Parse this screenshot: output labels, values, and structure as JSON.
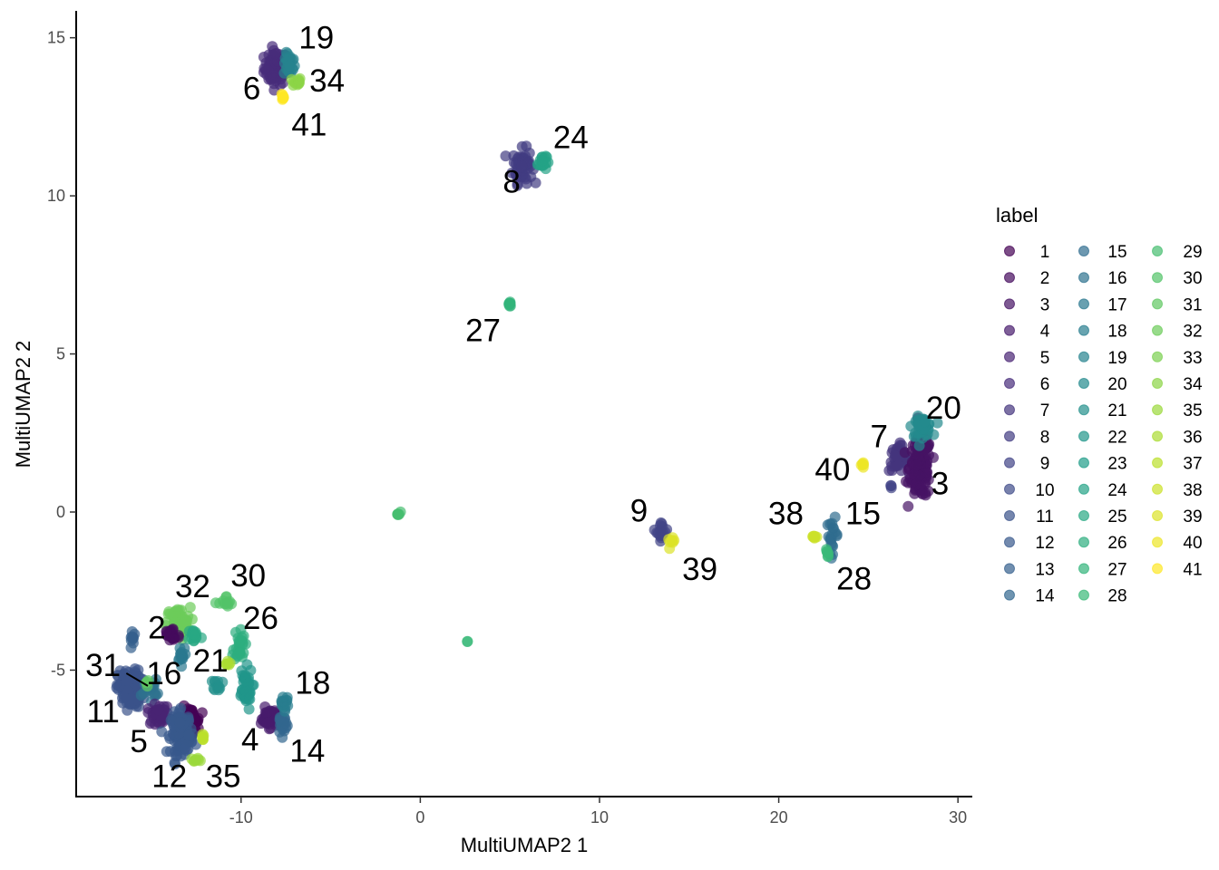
{
  "chart_data": {
    "type": "scatter",
    "xlabel": "MultiUMAP2 1",
    "ylabel": "MultiUMAP2 2",
    "xlim": [
      -19.2,
      30.8
    ],
    "ylim": [
      -9.0,
      15.85
    ],
    "xticks": [
      -10,
      0,
      10,
      20,
      30
    ],
    "yticks": [
      -5,
      0,
      5,
      10,
      15
    ],
    "grid": false,
    "legend": {
      "title": "label",
      "placement": "right",
      "labels": [
        "1",
        "2",
        "3",
        "4",
        "5",
        "6",
        "7",
        "8",
        "9",
        "10",
        "11",
        "12",
        "13",
        "14",
        "15",
        "16",
        "17",
        "18",
        "19",
        "20",
        "21",
        "22",
        "23",
        "24",
        "25",
        "26",
        "27",
        "28",
        "29",
        "30",
        "31",
        "32",
        "33",
        "34",
        "35",
        "36",
        "37",
        "38",
        "39",
        "40",
        "41"
      ]
    },
    "clusters": [
      {
        "label": 6,
        "center": [
          -8.05,
          14.05
        ],
        "spread": [
          0.55,
          0.45
        ],
        "n": 90
      },
      {
        "label": 19,
        "center": [
          -7.3,
          14.15
        ],
        "spread": [
          0.25,
          0.3
        ],
        "n": 25
      },
      {
        "label": 34,
        "center": [
          -6.9,
          13.6
        ],
        "spread": [
          0.2,
          0.12
        ],
        "n": 14
      },
      {
        "label": 41,
        "center": [
          -7.7,
          13.15
        ],
        "spread": [
          0.12,
          0.1
        ],
        "n": 8
      },
      {
        "label": 8,
        "center": [
          5.7,
          10.95
        ],
        "spread": [
          0.45,
          0.45
        ],
        "n": 70
      },
      {
        "label": 24,
        "center": [
          6.8,
          11.1
        ],
        "spread": [
          0.2,
          0.25
        ],
        "n": 18
      },
      {
        "label": 27,
        "center": [
          5.0,
          6.56
        ],
        "spread": [
          0.1,
          0.08
        ],
        "n": 10
      },
      {
        "label": 29,
        "center": [
          -1.2,
          -0.05
        ],
        "spread": [
          0.08,
          0.05
        ],
        "n": 6
      },
      {
        "label": 28,
        "center": [
          2.6,
          -4.07
        ],
        "spread": [
          0.05,
          0.04
        ],
        "n": 2
      },
      {
        "label": 9,
        "center": [
          13.5,
          -0.6
        ],
        "spread": [
          0.25,
          0.25
        ],
        "n": 16
      },
      {
        "label": 39,
        "center": [
          14.0,
          -0.95
        ],
        "spread": [
          0.15,
          0.1
        ],
        "n": 8
      },
      {
        "label": 38,
        "center": [
          22.0,
          -0.78
        ],
        "spread": [
          0.15,
          0.06
        ],
        "n": 8
      },
      {
        "label": 15,
        "center": [
          23.0,
          -0.75
        ],
        "spread": [
          0.25,
          0.45
        ],
        "n": 20
      },
      {
        "label": 28,
        "center": [
          22.7,
          -1.3
        ],
        "spread": [
          0.1,
          0.1
        ],
        "n": 6
      },
      {
        "label": 40,
        "center": [
          24.7,
          1.5
        ],
        "spread": [
          0.1,
          0.08
        ],
        "n": 6
      },
      {
        "label": 7,
        "center": [
          26.7,
          1.7
        ],
        "spread": [
          0.45,
          0.35
        ],
        "n": 50
      },
      {
        "label": 3,
        "center": [
          27.9,
          1.4
        ],
        "spread": [
          0.5,
          0.8
        ],
        "n": 140
      },
      {
        "label": 20,
        "center": [
          28.0,
          2.7
        ],
        "spread": [
          0.45,
          0.25
        ],
        "n": 45
      },
      {
        "label": 9,
        "center": [
          26.2,
          0.8
        ],
        "spread": [
          0.1,
          0.1
        ],
        "n": 3
      },
      {
        "label": 32,
        "center": [
          -13.5,
          -3.5
        ],
        "spread": [
          0.55,
          0.4
        ],
        "n": 60
      },
      {
        "label": 2,
        "center": [
          -13.9,
          -3.9
        ],
        "spread": [
          0.4,
          0.25
        ],
        "n": 25
      },
      {
        "label": 25,
        "center": [
          -12.6,
          -3.9
        ],
        "spread": [
          0.3,
          0.2
        ],
        "n": 18
      },
      {
        "label": 17,
        "center": [
          -13.3,
          -4.45
        ],
        "spread": [
          0.2,
          0.25
        ],
        "n": 14
      },
      {
        "label": 13,
        "center": [
          -16.05,
          -4.0
        ],
        "spread": [
          0.12,
          0.3
        ],
        "n": 10
      },
      {
        "label": 30,
        "center": [
          -10.8,
          -2.9
        ],
        "spread": [
          0.35,
          0.2
        ],
        "n": 12
      },
      {
        "label": 26,
        "center": [
          -10.1,
          -4.2
        ],
        "spread": [
          0.25,
          0.45
        ],
        "n": 28
      },
      {
        "label": 21,
        "center": [
          -11.3,
          -5.45
        ],
        "spread": [
          0.2,
          0.15
        ],
        "n": 12
      },
      {
        "label": 36,
        "center": [
          -10.75,
          -4.75
        ],
        "spread": [
          0.12,
          0.1
        ],
        "n": 6
      },
      {
        "label": 22,
        "center": [
          -9.8,
          -5.6
        ],
        "spread": [
          0.35,
          0.55
        ],
        "n": 40
      },
      {
        "label": 11,
        "center": [
          -16.2,
          -5.6
        ],
        "spread": [
          0.55,
          0.5
        ],
        "n": 140
      },
      {
        "label": 16,
        "center": [
          -15.1,
          -5.6
        ],
        "spread": [
          0.35,
          0.25
        ],
        "n": 20
      },
      {
        "label": 31,
        "center": [
          -15.2,
          -5.4
        ],
        "spread": [
          0.08,
          0.08
        ],
        "n": 4
      },
      {
        "label": 5,
        "center": [
          -14.6,
          -6.4
        ],
        "spread": [
          0.5,
          0.25
        ],
        "n": 40
      },
      {
        "label": 1,
        "center": [
          -12.8,
          -6.6
        ],
        "spread": [
          0.4,
          0.35
        ],
        "n": 55
      },
      {
        "label": 12,
        "center": [
          -13.3,
          -7.0
        ],
        "spread": [
          0.5,
          0.55
        ],
        "n": 120
      },
      {
        "label": 37,
        "center": [
          -12.1,
          -7.15
        ],
        "spread": [
          0.12,
          0.15
        ],
        "n": 8
      },
      {
        "label": 35,
        "center": [
          -12.6,
          -7.85
        ],
        "spread": [
          0.2,
          0.08
        ],
        "n": 8
      },
      {
        "label": 4,
        "center": [
          -8.4,
          -6.5
        ],
        "spread": [
          0.4,
          0.25
        ],
        "n": 50
      },
      {
        "label": 14,
        "center": [
          -7.7,
          -6.7
        ],
        "spread": [
          0.2,
          0.3
        ],
        "n": 25
      },
      {
        "label": 18,
        "center": [
          -7.6,
          -6.0
        ],
        "spread": [
          0.2,
          0.2
        ],
        "n": 18
      }
    ],
    "annotations": [
      {
        "text": "19",
        "x": -5.8,
        "y": 15.0
      },
      {
        "text": "6",
        "x": -9.4,
        "y": 13.4
      },
      {
        "text": "34",
        "x": -5.2,
        "y": 13.65
      },
      {
        "text": "41",
        "x": -6.2,
        "y": 12.25
      },
      {
        "text": "24",
        "x": 8.4,
        "y": 11.85
      },
      {
        "text": "8",
        "x": 5.1,
        "y": 10.45
      },
      {
        "text": "27",
        "x": 3.5,
        "y": 5.75
      },
      {
        "text": "20",
        "x": 29.2,
        "y": 3.3
      },
      {
        "text": "7",
        "x": 25.6,
        "y": 2.4
      },
      {
        "text": "40",
        "x": 23.0,
        "y": 1.35
      },
      {
        "text": "3",
        "x": 29.0,
        "y": 0.9
      },
      {
        "text": "9",
        "x": 12.2,
        "y": 0.05
      },
      {
        "text": "39",
        "x": 15.6,
        "y": -1.8
      },
      {
        "text": "38",
        "x": 20.4,
        "y": -0.05
      },
      {
        "text": "15",
        "x": 24.7,
        "y": -0.05
      },
      {
        "text": "28",
        "x": 24.2,
        "y": -2.1
      },
      {
        "text": "32",
        "x": -12.7,
        "y": -2.35
      },
      {
        "text": "30",
        "x": -9.6,
        "y": -2.0
      },
      {
        "text": "2",
        "x": -14.7,
        "y": -3.65
      },
      {
        "text": "26",
        "x": -8.9,
        "y": -3.35
      },
      {
        "text": "21",
        "x": -11.7,
        "y": -4.7
      },
      {
        "text": "31",
        "x": -17.7,
        "y": -4.85
      },
      {
        "text": "16",
        "x": -14.3,
        "y": -5.1
      },
      {
        "text": "18",
        "x": -6.0,
        "y": -5.4
      },
      {
        "text": "11",
        "x": -17.7,
        "y": -6.3
      },
      {
        "text": "5",
        "x": -15.7,
        "y": -7.25
      },
      {
        "text": "4",
        "x": -9.5,
        "y": -7.2
      },
      {
        "text": "14",
        "x": -6.3,
        "y": -7.55
      },
      {
        "text": "12",
        "x": -14.0,
        "y": -8.35
      },
      {
        "text": "35",
        "x": -11.0,
        "y": -8.35
      }
    ],
    "segments": [
      {
        "from": [
          -16.4,
          -5.1
        ],
        "to": [
          -15.2,
          -5.5
        ]
      }
    ]
  }
}
